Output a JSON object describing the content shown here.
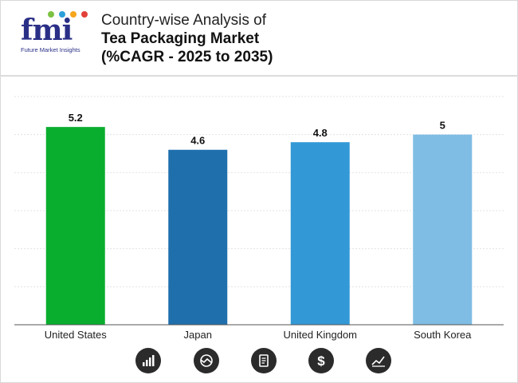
{
  "header": {
    "logo_text": "fmi",
    "logo_tagline": "Future Market Insights",
    "title_line1": "Country-wise Analysis of",
    "title_line2": "Tea Packaging Market",
    "title_line3": "(%CAGR - 2025 to 2035)"
  },
  "chart_data": {
    "type": "bar",
    "title": "Country-wise Analysis of Tea Packaging Market (%CAGR - 2025 to 2035)",
    "categories": [
      "United States",
      "Japan",
      "United Kingdom",
      "South Korea"
    ],
    "values": [
      5.2,
      4.6,
      4.8,
      5
    ],
    "value_labels": [
      "5.2",
      "4.6",
      "4.8",
      "5"
    ],
    "colors": [
      "#0aae2e",
      "#1f6fad",
      "#3399d6",
      "#7fbde4"
    ],
    "xlabel": "",
    "ylabel": "",
    "ylim": [
      0,
      6
    ],
    "grid": true,
    "legend": "none"
  },
  "footer_icons": [
    "bar-chart-icon",
    "growth-chart-icon",
    "document-icon",
    "dollar-icon",
    "line-chart-icon"
  ]
}
